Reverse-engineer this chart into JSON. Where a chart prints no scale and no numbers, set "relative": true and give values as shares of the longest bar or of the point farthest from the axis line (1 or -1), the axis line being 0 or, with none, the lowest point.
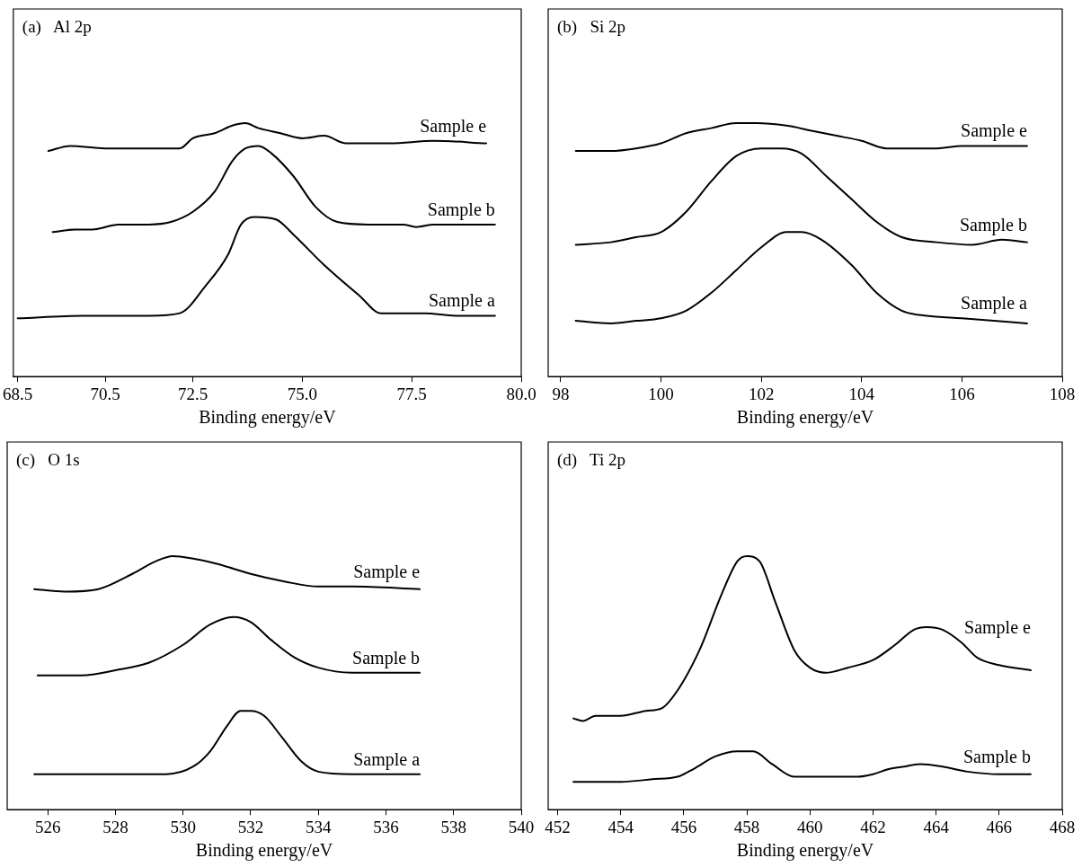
{
  "chart_data": [
    {
      "type": "line",
      "title": "(a)   Al 2p",
      "xlabel": "Binding energy/eV",
      "relative": true,
      "legend": false,
      "xlim": [
        68.4,
        80.0
      ],
      "xticks": [
        68.5,
        70.5,
        72.5,
        {
          "value": 75,
          "label": "75.0"
        },
        77.5,
        {
          "value": 80,
          "label": "80.0"
        }
      ],
      "series": [
        {
          "name": "Sample e",
          "color": "#000000",
          "x": [
            69.2,
            69.7,
            70.5,
            71.5,
            72.2,
            72.5,
            73.0,
            73.4,
            73.7,
            74.0,
            74.5,
            75.0,
            75.5,
            76.0,
            77.0,
            78.0,
            79.2
          ],
          "values": [
            0.89,
            0.91,
            0.9,
            0.9,
            0.9,
            0.94,
            0.96,
            0.99,
            1,
            0.98,
            0.96,
            0.94,
            0.95,
            0.92,
            0.92,
            0.93,
            0.92
          ]
        },
        {
          "name": "Sample b",
          "color": "#000000",
          "x": [
            69.3,
            69.8,
            70.2,
            70.8,
            71.5,
            72.0,
            72.5,
            73.0,
            73.4,
            73.7,
            74.0,
            74.3,
            74.8,
            75.3,
            75.8,
            76.5,
            77.3,
            77.6,
            78.0,
            79.4
          ],
          "values": [
            0.57,
            0.58,
            0.58,
            0.6,
            0.6,
            0.61,
            0.65,
            0.73,
            0.85,
            0.9,
            0.91,
            0.88,
            0.79,
            0.67,
            0.61,
            0.6,
            0.6,
            0.59,
            0.6,
            0.6
          ]
        },
        {
          "name": "Sample a",
          "color": "#000000",
          "x": [
            68.5,
            70.0,
            71.5,
            72.2,
            72.8,
            73.3,
            73.6,
            73.9,
            74.4,
            74.8,
            75.5,
            76.3,
            76.8,
            77.2,
            77.8,
            78.5,
            79.4
          ],
          "values": [
            0.23,
            0.24,
            0.24,
            0.25,
            0.36,
            0.48,
            0.6,
            0.63,
            0.62,
            0.56,
            0.44,
            0.32,
            0.25,
            0.25,
            0.25,
            0.24,
            0.24
          ]
        }
      ]
    },
    {
      "type": "line",
      "title": "(b)   Si 2p",
      "xlabel": "Binding energy/eV",
      "relative": true,
      "legend": false,
      "xlim": [
        97.75,
        108
      ],
      "xticks": [
        98,
        100,
        102,
        104,
        106,
        108
      ],
      "series": [
        {
          "name": "Sample e",
          "color": "#000000",
          "x": [
            98.3,
            99.0,
            99.5,
            100.0,
            100.5,
            101.0,
            101.5,
            101.9,
            102.5,
            103.0,
            103.5,
            104.0,
            104.5,
            105.0,
            105.5,
            106.0,
            107.3
          ],
          "values": [
            0.89,
            0.89,
            0.9,
            0.92,
            0.96,
            0.98,
            1.0,
            1,
            0.99,
            0.97,
            0.95,
            0.93,
            0.9,
            0.9,
            0.9,
            0.91,
            0.91
          ]
        },
        {
          "name": "Sample b",
          "color": "#000000",
          "x": [
            98.3,
            99.0,
            99.5,
            100.0,
            100.5,
            101.0,
            101.5,
            102.0,
            102.4,
            102.8,
            103.3,
            103.8,
            104.3,
            104.8,
            105.5,
            106.2,
            106.8,
            107.3
          ],
          "values": [
            0.52,
            0.53,
            0.55,
            0.57,
            0.65,
            0.77,
            0.87,
            0.9,
            0.9,
            0.88,
            0.79,
            0.7,
            0.61,
            0.55,
            0.53,
            0.52,
            0.54,
            0.53
          ]
        },
        {
          "name": "Sample a",
          "color": "#000000",
          "x": [
            98.3,
            99.0,
            99.5,
            100.0,
            100.5,
            101.0,
            101.5,
            102.0,
            102.5,
            102.8,
            103.2,
            103.8,
            104.3,
            104.8,
            105.3,
            106.0,
            107.3
          ],
          "values": [
            0.22,
            0.21,
            0.22,
            0.23,
            0.26,
            0.33,
            0.42,
            0.51,
            0.57,
            0.57,
            0.54,
            0.44,
            0.33,
            0.26,
            0.24,
            0.23,
            0.21
          ]
        }
      ]
    },
    {
      "type": "line",
      "title": "(c)   O 1s",
      "xlabel": "Binding energy/eV",
      "relative": true,
      "legend": false,
      "xlim": [
        524.8,
        540
      ],
      "xticks": [
        526,
        528,
        530,
        532,
        534,
        536,
        538,
        540
      ],
      "series": [
        {
          "name": "Sample e",
          "color": "#000000",
          "x": [
            525.6,
            526.5,
            527.5,
            528.5,
            529.2,
            529.7,
            530.3,
            531.0,
            532.0,
            533.0,
            534.0,
            535.0,
            537.0
          ],
          "values": [
            0.87,
            0.86,
            0.87,
            0.93,
            0.98,
            1,
            0.99,
            0.97,
            0.93,
            0.9,
            0.88,
            0.88,
            0.87
          ]
        },
        {
          "name": "Sample b",
          "color": "#000000",
          "x": [
            525.7,
            527.0,
            528.0,
            529.0,
            530.0,
            530.8,
            531.5,
            532.0,
            532.6,
            533.3,
            534.0,
            535.0,
            537.0
          ],
          "values": [
            0.53,
            0.53,
            0.55,
            0.58,
            0.65,
            0.73,
            0.76,
            0.74,
            0.67,
            0.6,
            0.56,
            0.54,
            0.54
          ]
        },
        {
          "name": "Sample a",
          "color": "#000000",
          "x": [
            525.6,
            527.0,
            528.5,
            529.5,
            530.3,
            530.8,
            531.3,
            531.7,
            532.0,
            532.4,
            532.9,
            533.5,
            534.0,
            535.0,
            537.0
          ],
          "values": [
            0.14,
            0.14,
            0.14,
            0.14,
            0.17,
            0.23,
            0.33,
            0.39,
            0.39,
            0.37,
            0.29,
            0.19,
            0.15,
            0.14,
            0.14
          ]
        }
      ]
    },
    {
      "type": "line",
      "title": "(d)   Ti 2p",
      "xlabel": "Binding energy/eV",
      "relative": true,
      "legend": false,
      "xlim": [
        451.7,
        468
      ],
      "xticks": [
        452,
        454,
        456,
        458,
        460,
        462,
        464,
        466,
        468
      ],
      "series": [
        {
          "name": "Sample e",
          "color": "#000000",
          "x": [
            452.5,
            452.8,
            453.2,
            454.0,
            454.8,
            455.3,
            455.8,
            456.5,
            457.2,
            457.7,
            458.0,
            458.4,
            458.9,
            459.5,
            460.0,
            460.5,
            461.2,
            462.0,
            462.7,
            463.3,
            463.7,
            464.2,
            464.8,
            465.3,
            466.0,
            467.0
          ],
          "values": [
            0.36,
            0.35,
            0.37,
            0.37,
            0.39,
            0.4,
            0.47,
            0.63,
            0.85,
            0.98,
            1,
            0.98,
            0.82,
            0.63,
            0.56,
            0.54,
            0.56,
            0.59,
            0.65,
            0.71,
            0.72,
            0.71,
            0.66,
            0.6,
            0.57,
            0.55
          ]
        },
        {
          "name": "Sample b",
          "color": "#000000",
          "x": [
            452.5,
            454.0,
            455.0,
            455.8,
            456.3,
            457.0,
            457.7,
            458.2,
            458.8,
            459.5,
            460.5,
            461.5,
            462.0,
            462.5,
            463.0,
            463.5,
            464.2,
            465.0,
            466.0,
            467.0
          ],
          "values": [
            0.11,
            0.11,
            0.12,
            0.13,
            0.16,
            0.21,
            0.23,
            0.23,
            0.18,
            0.13,
            0.13,
            0.13,
            0.14,
            0.16,
            0.17,
            0.18,
            0.17,
            0.15,
            0.14,
            0.14
          ]
        }
      ]
    }
  ]
}
